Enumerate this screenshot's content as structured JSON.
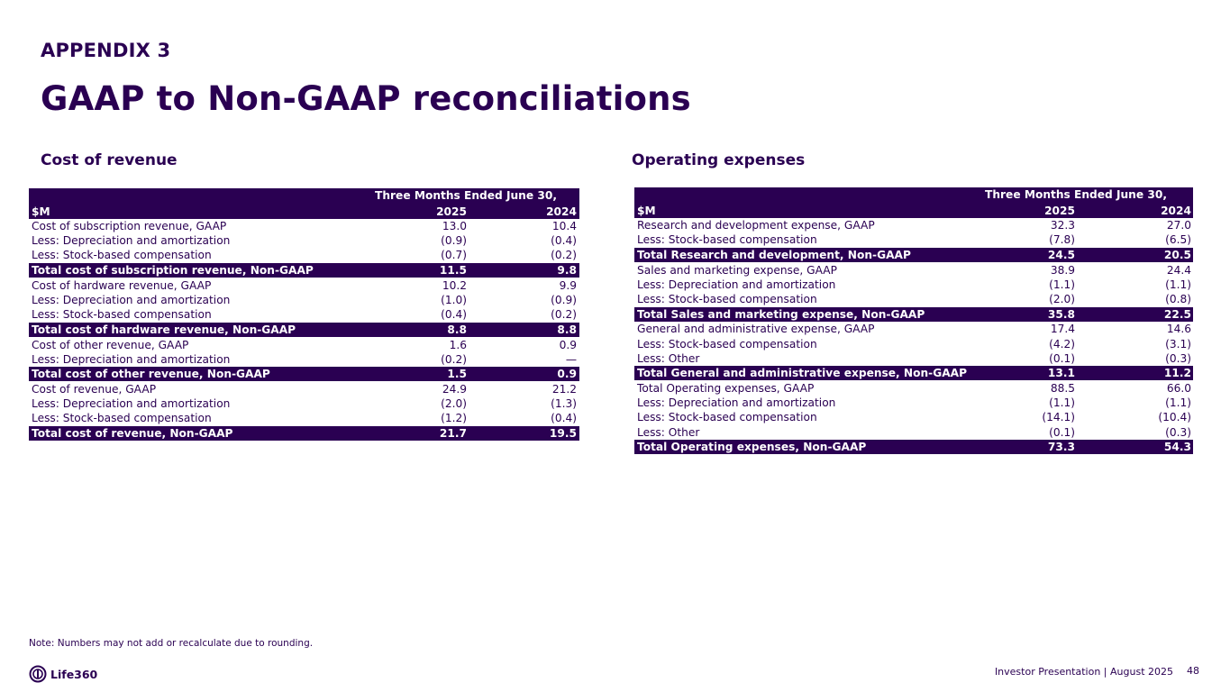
{
  "header": {
    "appendix": "APPENDIX 3",
    "title": "GAAP to Non-GAAP reconciliations"
  },
  "cost_of_revenue": {
    "section_title": "Cost of revenue",
    "period_label": "Three Months Ended June 30,",
    "unit_label": "$M",
    "years": [
      "2025",
      "2024"
    ],
    "rows": [
      {
        "label": "Cost of subscription revenue, GAAP",
        "v2025": "13.0",
        "v2024": "10.4",
        "total": false
      },
      {
        "label": "Less: Depreciation and amortization",
        "v2025": "(0.9)",
        "v2024": "(0.4)",
        "total": false
      },
      {
        "label": "Less: Stock-based compensation",
        "v2025": "(0.7)",
        "v2024": "(0.2)",
        "total": false
      },
      {
        "label": "Total cost of subscription revenue, Non-GAAP",
        "v2025": "11.5",
        "v2024": "9.8",
        "total": true
      },
      {
        "label": "Cost of hardware revenue, GAAP",
        "v2025": "10.2",
        "v2024": "9.9",
        "total": false
      },
      {
        "label": "Less: Depreciation and amortization",
        "v2025": "(1.0)",
        "v2024": "(0.9)",
        "total": false
      },
      {
        "label": "Less: Stock-based compensation",
        "v2025": "(0.4)",
        "v2024": "(0.2)",
        "total": false
      },
      {
        "label": "Total cost of hardware revenue, Non-GAAP",
        "v2025": "8.8",
        "v2024": "8.8",
        "total": true
      },
      {
        "label": "Cost of other revenue, GAAP",
        "v2025": "1.6",
        "v2024": "0.9",
        "total": false
      },
      {
        "label": "Less: Depreciation and amortization",
        "v2025": "(0.2)",
        "v2024": "—",
        "total": false
      },
      {
        "label": "Total cost of other revenue, Non-GAAP",
        "v2025": "1.5",
        "v2024": "0.9",
        "total": true
      },
      {
        "label": "Cost of revenue, GAAP",
        "v2025": "24.9",
        "v2024": "21.2",
        "total": false
      },
      {
        "label": "Less: Depreciation and amortization",
        "v2025": "(2.0)",
        "v2024": "(1.3)",
        "total": false
      },
      {
        "label": "Less: Stock-based compensation",
        "v2025": "(1.2)",
        "v2024": "(0.4)",
        "total": false
      },
      {
        "label": "Total cost of revenue, Non-GAAP",
        "v2025": "21.7",
        "v2024": "19.5",
        "total": true
      }
    ]
  },
  "operating_expenses": {
    "section_title": "Operating expenses",
    "period_label": "Three Months Ended June 30,",
    "unit_label": "$M",
    "years": [
      "2025",
      "2024"
    ],
    "rows": [
      {
        "label": "Research and development expense, GAAP",
        "v2025": "32.3",
        "v2024": "27.0",
        "total": false
      },
      {
        "label": "Less: Stock-based compensation",
        "v2025": "(7.8)",
        "v2024": "(6.5)",
        "total": false
      },
      {
        "label": "Total Research and development, Non-GAAP",
        "v2025": "24.5",
        "v2024": "20.5",
        "total": true
      },
      {
        "label": "Sales and marketing expense, GAAP",
        "v2025": "38.9",
        "v2024": "24.4",
        "total": false
      },
      {
        "label": "Less: Depreciation and amortization",
        "v2025": "(1.1)",
        "v2024": "(1.1)",
        "total": false
      },
      {
        "label": "Less: Stock-based compensation",
        "v2025": "(2.0)",
        "v2024": "(0.8)",
        "total": false
      },
      {
        "label": "Total Sales and marketing expense, Non-GAAP",
        "v2025": "35.8",
        "v2024": "22.5",
        "total": true
      },
      {
        "label": "General and administrative expense, GAAP",
        "v2025": "17.4",
        "v2024": "14.6",
        "total": false
      },
      {
        "label": "Less: Stock-based compensation",
        "v2025": "(4.2)",
        "v2024": "(3.1)",
        "total": false
      },
      {
        "label": "Less: Other",
        "v2025": "(0.1)",
        "v2024": "(0.3)",
        "total": false
      },
      {
        "label": "Total General and administrative expense, Non-GAAP",
        "v2025": "13.1",
        "v2024": "11.2",
        "total": true
      },
      {
        "label": "Total Operating expenses, GAAP",
        "v2025": "88.5",
        "v2024": "66.0",
        "total": false
      },
      {
        "label": "Less: Depreciation and amortization",
        "v2025": "(1.1)",
        "v2024": "(1.1)",
        "total": false
      },
      {
        "label": "Less: Stock-based compensation",
        "v2025": "(14.1)",
        "v2024": "(10.4)",
        "total": false
      },
      {
        "label": "Less: Other",
        "v2025": "(0.1)",
        "v2024": "(0.3)",
        "total": false
      },
      {
        "label": "Total Operating expenses, Non-GAAP",
        "v2025": "73.3",
        "v2024": "54.3",
        "total": true
      }
    ]
  },
  "note": "Note: Numbers may not add or recalculate due to rounding.",
  "footer": {
    "logo_text": "Life360",
    "presentation": "Investor Presentation  | August 2025",
    "page_number": "48"
  },
  "colors": {
    "brand_purple": "#2a0052"
  }
}
